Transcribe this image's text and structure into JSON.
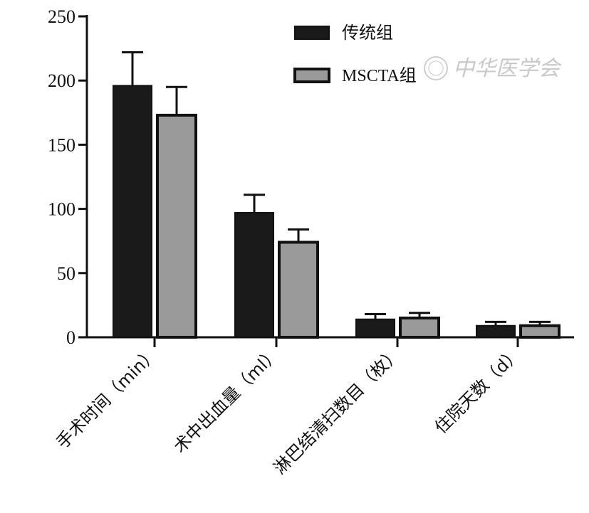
{
  "chart_data": {
    "type": "bar",
    "title": "",
    "xlabel": "",
    "ylabel": "",
    "ylim": [
      0,
      250
    ],
    "yticks": [
      0,
      50,
      100,
      150,
      200,
      250
    ],
    "categories": [
      "手术时间（min）",
      "术中出血量（ml）",
      "淋巴结清扫数目（枚）",
      "住院天数（d）"
    ],
    "series": [
      {
        "name": "传统组",
        "color": "#1a1a1a",
        "values": [
          196,
          97,
          14,
          9
        ],
        "errors": [
          26,
          14,
          4,
          3
        ]
      },
      {
        "name": "MSCTA组",
        "color": "#9a9a9a",
        "values": [
          173,
          74,
          15,
          9
        ],
        "errors": [
          22,
          10,
          4,
          3
        ]
      }
    ],
    "legend_position": "top-right",
    "grid": false
  },
  "watermark": {
    "text": "中华医学会"
  }
}
